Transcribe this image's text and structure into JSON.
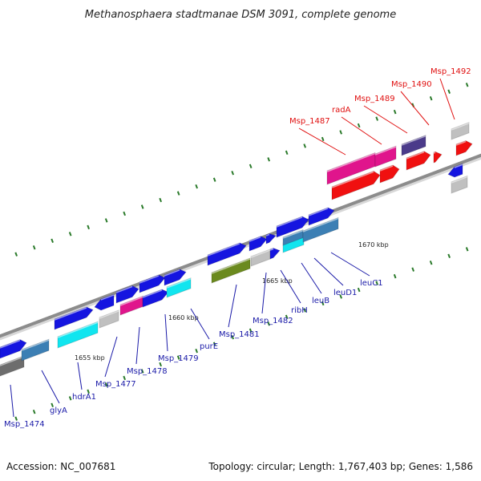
{
  "title": "Methanosphaera stadtmanae DSM 3091, complete genome",
  "footer": {
    "accession": "Accession: NC_007681",
    "summary": "Topology: circular; Length: 1,767,403 bp; Genes: 1,586"
  },
  "colors": {
    "backbone": "#8c8c8c",
    "tick_dash": "#2a7a2a",
    "label_default": "#1a1aa8",
    "label_highlight": "#e01010",
    "gene_blue": "#1515e0",
    "gene_cyan": "#11e5ef",
    "gene_steel": "#3c7fb4",
    "gene_grey": "#c0c0c0",
    "gene_darkgrey": "#6d6d6d",
    "gene_pink": "#e0158c",
    "gene_olive": "#6b8a1e",
    "gene_purple": "#4b3b8a",
    "gene_red": "#f01010"
  },
  "ticks": [
    {
      "label": "1655 kbp"
    },
    {
      "label": "1660 kbp"
    },
    {
      "label": "1665 kbp"
    },
    {
      "label": "1670 kbp"
    }
  ],
  "gene_labels": [
    {
      "text": "Msp_1474",
      "highlight": false
    },
    {
      "text": "glyA",
      "highlight": false
    },
    {
      "text": "hdrA1",
      "highlight": false
    },
    {
      "text": "Msp_1477",
      "highlight": false
    },
    {
      "text": "Msp_1478",
      "highlight": false
    },
    {
      "text": "Msp_1479",
      "highlight": false
    },
    {
      "text": "purE",
      "highlight": false
    },
    {
      "text": "Msp_1481",
      "highlight": false
    },
    {
      "text": "Msp_1482",
      "highlight": false
    },
    {
      "text": "ribH",
      "highlight": false
    },
    {
      "text": "leuB",
      "highlight": false
    },
    {
      "text": "leuD1",
      "highlight": false
    },
    {
      "text": "leuC1",
      "highlight": false
    },
    {
      "text": "Msp_1487",
      "highlight": true
    },
    {
      "text": "radA",
      "highlight": true
    },
    {
      "text": "Msp_1489",
      "highlight": true
    },
    {
      "text": "Msp_1490",
      "highlight": true
    },
    {
      "text": "Msp_1492",
      "highlight": true
    }
  ]
}
